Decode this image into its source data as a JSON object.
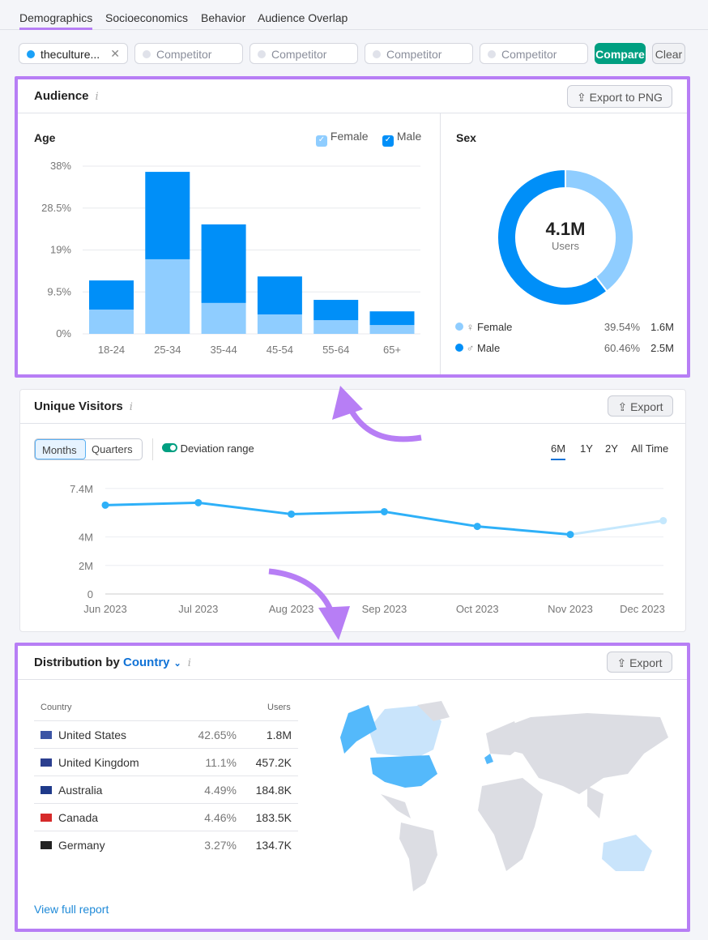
{
  "tabs": [
    "Demographics",
    "Socioeconomics",
    "Behavior",
    "Audience Overlap"
  ],
  "filters": {
    "domain": "theculture...",
    "competitor_placeholder": "Competitor",
    "compare": "Compare",
    "clear": "Clear"
  },
  "audience": {
    "title": "Audience",
    "export": "Export to PNG",
    "age": {
      "title": "Age",
      "legend": [
        "Female",
        "Male"
      ]
    },
    "sex": {
      "title": "Sex",
      "total": "4.1M",
      "total_label": "Users",
      "rows": [
        {
          "label": "Female",
          "pct": "39.54%",
          "value": "1.6M",
          "color": "#8fcdff"
        },
        {
          "label": "Male",
          "pct": "60.46%",
          "value": "2.5M",
          "color": "#008ff8"
        }
      ]
    }
  },
  "visitors": {
    "title": "Unique Visitors",
    "export": "Export",
    "granularity": [
      "Months",
      "Quarters"
    ],
    "deviation": "Deviation range",
    "ranges": [
      "6M",
      "1Y",
      "2Y",
      "All Time"
    ]
  },
  "distribution": {
    "title": "Distribution by",
    "dimension": "Country",
    "export": "Export",
    "col_country": "Country",
    "col_users": "Users",
    "rows": [
      {
        "country": "United States",
        "pct": "42.65%",
        "users": "1.8M"
      },
      {
        "country": "United Kingdom",
        "pct": "11.1%",
        "users": "457.2K"
      },
      {
        "country": "Australia",
        "pct": "4.49%",
        "users": "184.8K"
      },
      {
        "country": "Canada",
        "pct": "4.46%",
        "users": "183.5K"
      },
      {
        "country": "Germany",
        "pct": "3.27%",
        "users": "134.7K"
      }
    ],
    "link": "View full report"
  },
  "chart_data": [
    {
      "type": "bar",
      "stacked": true,
      "title": "Age",
      "categories": [
        "18-24",
        "25-34",
        "35-44",
        "45-54",
        "55-64",
        "65+"
      ],
      "yticks": [
        "0%",
        "9.5%",
        "19%",
        "28.5%",
        "38%"
      ],
      "ylim": [
        0,
        38
      ],
      "series": [
        {
          "name": "Female",
          "color": "#8fcdff",
          "values": [
            5.5,
            16.9,
            7.0,
            4.4,
            3.1,
            2.0
          ]
        },
        {
          "name": "Male",
          "color": "#008ff8",
          "values": [
            6.6,
            19.8,
            17.8,
            8.6,
            4.6,
            3.1
          ]
        }
      ]
    },
    {
      "type": "pie",
      "title": "Sex",
      "values": [
        39.54,
        60.46
      ],
      "labels": [
        "Female",
        "Male"
      ]
    },
    {
      "type": "line",
      "categories": [
        "Jun 2023",
        "Jul 2023",
        "Aug 2023",
        "Sep 2023",
        "Oct 2023",
        "Nov 2023",
        "Dec 2023"
      ],
      "yticks": [
        "0",
        "2M",
        "4M",
        "7.4M"
      ],
      "ytick_values": [
        0,
        2,
        4,
        7.4
      ],
      "ylim": [
        0,
        7.4
      ],
      "values": [
        6.23,
        6.4,
        5.6,
        5.77,
        4.74,
        4.17,
        5.14
      ],
      "color": "#2eb0f8"
    }
  ]
}
